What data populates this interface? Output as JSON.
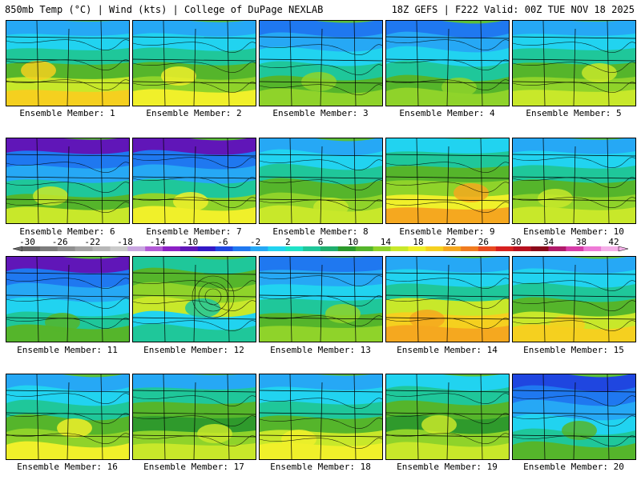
{
  "header": {
    "left": "850mb Temp (°C) | Wind (kts) | College of DuPage NEXLAB",
    "right": "18Z GEFS | F222 Valid: 00Z TUE NOV 18 2025"
  },
  "caption_prefix": "Ensemble Member: ",
  "members": [
    1,
    2,
    3,
    4,
    5,
    6,
    7,
    8,
    9,
    10,
    11,
    12,
    13,
    14,
    15,
    16,
    17,
    18,
    19,
    20
  ],
  "colorbar": {
    "tick_labels": [
      "-30",
      "-26",
      "-22",
      "-18",
      "-14",
      "-10",
      "-6",
      "-2",
      "2",
      "6",
      "10",
      "14",
      "18",
      "22",
      "26",
      "30",
      "34",
      "38",
      "42"
    ],
    "colors": [
      "#6a6a6a",
      "#7d7d7d",
      "#909090",
      "#a4a4a4",
      "#b7b7b7",
      "#cbcbcb",
      "#c9a6e0",
      "#b25ad6",
      "#8b1fc4",
      "#6016b8",
      "#3318c6",
      "#1f46e0",
      "#1f78f0",
      "#26a8f5",
      "#21d3f0",
      "#1fe3c8",
      "#1fc79a",
      "#1faf6e",
      "#2c9a2a",
      "#55b52b",
      "#8fd32a",
      "#c8e82a",
      "#f0f02a",
      "#f5d01f",
      "#f5a81f",
      "#f07c1f",
      "#e84a1f",
      "#d6201f",
      "#b8101f",
      "#8a0a1a",
      "#b01a6a",
      "#d63ca8",
      "#ee7ad6",
      "#f5b0e8"
    ]
  },
  "map_colors": {
    "dark_green": "#2f9a2c",
    "green": "#55b52b",
    "light_green": "#8fd32a",
    "yellow_green": "#c8e82a",
    "yellow": "#f0f02a",
    "gold": "#f5d01f",
    "orange": "#f5a81f",
    "teal": "#1fc79a",
    "cyan": "#21d3f0",
    "sky": "#26a8f5",
    "blue": "#1f78f0",
    "deep_blue": "#1f46e0",
    "purple": "#6016b8"
  }
}
